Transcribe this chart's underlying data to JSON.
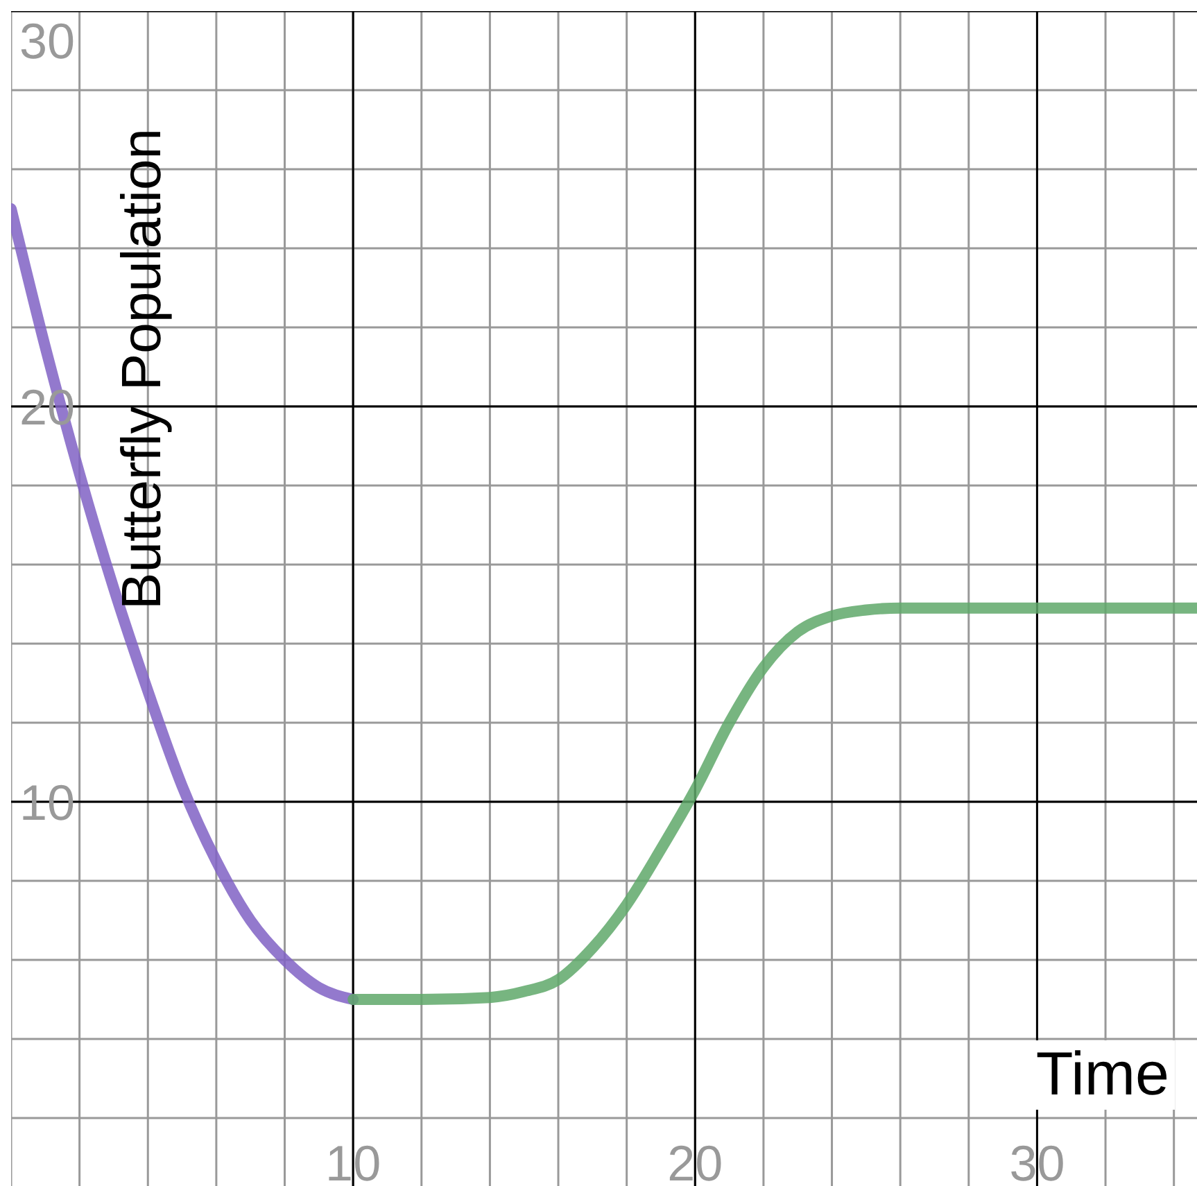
{
  "chart_data": {
    "type": "line",
    "xlabel": "Time",
    "ylabel": "Butterfly Population",
    "xlim": [
      0,
      35
    ],
    "ylim": [
      0,
      30
    ],
    "xticks": [
      {
        "value": 0,
        "label": null
      },
      {
        "value": 2,
        "label": null
      },
      {
        "value": 4,
        "label": null
      },
      {
        "value": 6,
        "label": null
      },
      {
        "value": 8,
        "label": null
      },
      10,
      {
        "value": 12,
        "label": null
      },
      {
        "value": 14,
        "label": null
      },
      {
        "value": 16,
        "label": null
      },
      {
        "value": 18,
        "label": null
      },
      20,
      {
        "value": 22,
        "label": null
      },
      {
        "value": 24,
        "label": null
      },
      {
        "value": 26,
        "label": null
      },
      {
        "value": 28,
        "label": null
      },
      30,
      {
        "value": 32,
        "label": null
      },
      {
        "value": 34,
        "label": null
      }
    ],
    "yticks": [
      {
        "value": 0,
        "label": null
      },
      {
        "value": 2,
        "label": null
      },
      {
        "value": 4,
        "label": null
      },
      {
        "value": 6,
        "label": null
      },
      {
        "value": 8,
        "label": null
      },
      10,
      {
        "value": 12,
        "label": null
      },
      {
        "value": 14,
        "label": null
      },
      {
        "value": 16,
        "label": null
      },
      {
        "value": 18,
        "label": null
      },
      20,
      {
        "value": 22,
        "label": null
      },
      {
        "value": 24,
        "label": null
      },
      {
        "value": 26,
        "label": null
      },
      {
        "value": 28,
        "label": null
      },
      30
    ],
    "grid": true,
    "marker": "none",
    "line_style": "solid",
    "series": [
      {
        "color": "#8062c4",
        "x": [
          0,
          1,
          2,
          3,
          4,
          5,
          6,
          7,
          8,
          9,
          10
        ],
        "values": [
          25,
          21.5,
          18.3,
          15.4,
          12.8,
          10.4,
          8.5,
          7.0,
          6.0,
          5.3,
          5.0
        ]
      },
      {
        "color": "#5fa86a",
        "x": [
          10,
          12,
          14,
          15,
          16,
          17,
          18,
          19,
          20,
          21,
          22,
          23,
          24,
          25,
          26,
          28,
          35
        ],
        "values": [
          5,
          5,
          5.05,
          5.2,
          5.5,
          6.3,
          7.4,
          8.8,
          10.3,
          12,
          13.4,
          14.3,
          14.7,
          14.85,
          14.9,
          14.9,
          14.9
        ]
      }
    ]
  }
}
